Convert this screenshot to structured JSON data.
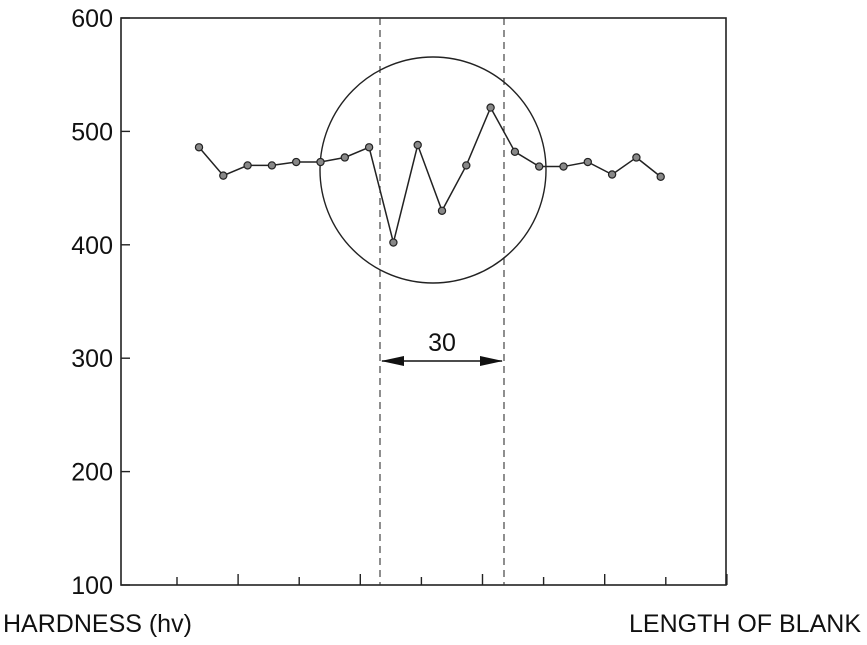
{
  "chart_data": {
    "type": "line",
    "xlabel": "LENGTH OF BLANK",
    "ylabel": "HARDNESS (hv)",
    "ylim": [
      100,
      600
    ],
    "y_ticks": [
      100,
      200,
      300,
      400,
      500,
      600
    ],
    "y_tick_labels": [
      "100",
      "200",
      "300",
      "400",
      "500",
      "600"
    ],
    "x_tick_count": 10,
    "grid": false,
    "legend": "none",
    "series": [
      {
        "values": [
          486,
          461,
          470,
          470,
          473,
          473,
          477,
          486,
          402,
          488,
          430,
          470,
          521,
          482,
          469,
          469,
          473,
          462,
          477,
          460
        ],
        "color": "#222222",
        "marker": "circle"
      }
    ],
    "annotations": {
      "dashed_region_count": 2,
      "dimension_label": "30",
      "highlight": "circle around the fluctuating section between the dashed lines"
    }
  }
}
